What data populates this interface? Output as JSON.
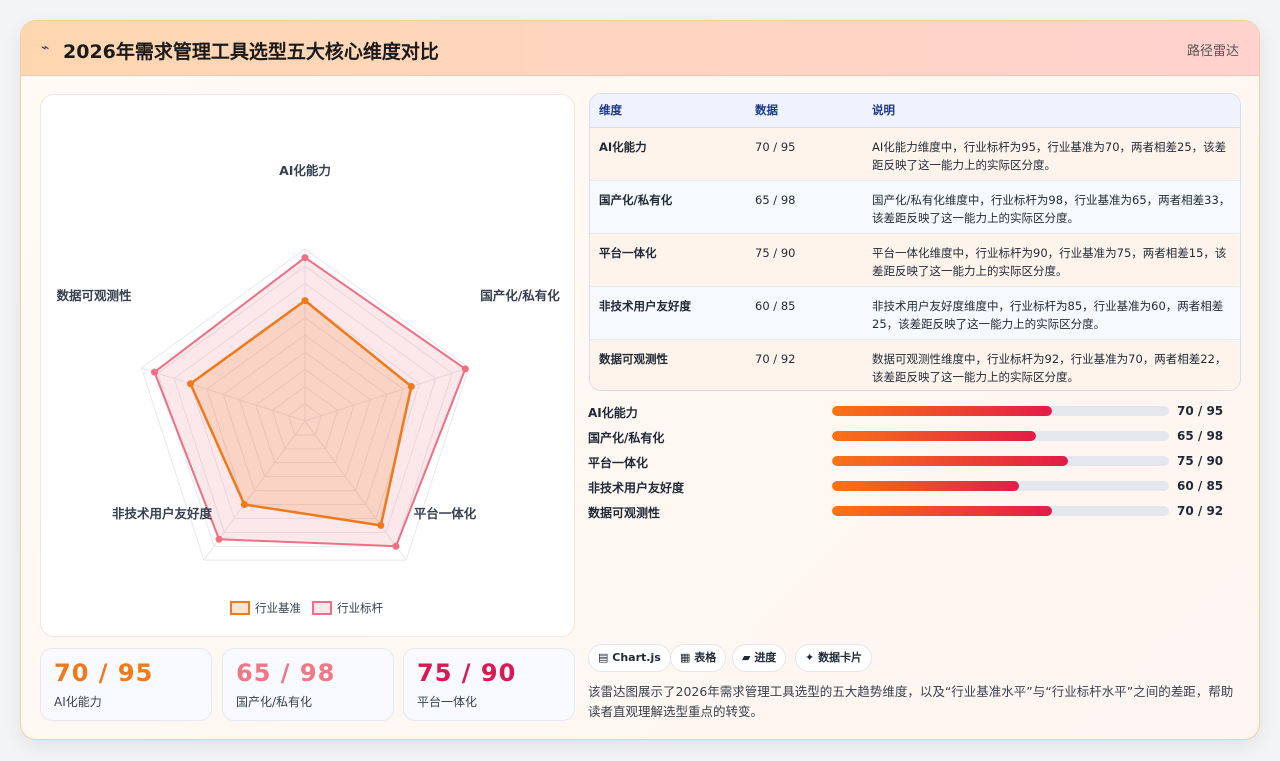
{
  "header": {
    "logo_icon": "⌁",
    "title": "2026年需求管理工具选型五大核心维度对比",
    "tag": "路径雷达"
  },
  "chart_data": {
    "type": "radar",
    "categories": [
      "AI化能力",
      "国产化/私有化",
      "平台一体化",
      "非技术用户友好度",
      "数据可观测性"
    ],
    "series": [
      {
        "name": "行业基准",
        "values": [
          70,
          65,
          75,
          60,
          70
        ],
        "color": "#f07a1a"
      },
      {
        "name": "行业标杆",
        "values": [
          95,
          98,
          90,
          85,
          92
        ],
        "color": "#ef6f84"
      }
    ],
    "range": [
      0,
      100
    ],
    "grid_rings": 10,
    "legend_position": "bottom"
  },
  "stats": [
    {
      "value": "70 / 95",
      "label": "AI化能力",
      "color": "#f07a1a"
    },
    {
      "value": "65 / 98",
      "label": "国产化/私有化",
      "color": "#f07783"
    },
    {
      "value": "75 / 90",
      "label": "平台一体化",
      "color": "#d9194f"
    }
  ],
  "table": {
    "headers": [
      "维度",
      "数据",
      "说明"
    ],
    "rows": [
      {
        "dim": "AI化能力",
        "data": "70 / 95",
        "desc": "AI化能力维度中，行业标杆为95，行业基准为70，两者相差25，该差距反映了这一能力上的实际区分度。"
      },
      {
        "dim": "国产化/私有化",
        "data": "65 / 98",
        "desc": "国产化/私有化维度中，行业标杆为98，行业基准为65，两者相差33，该差距反映了这一能力上的实际区分度。"
      },
      {
        "dim": "平台一体化",
        "data": "75 / 90",
        "desc": "平台一体化维度中，行业标杆为90，行业基准为75，两者相差15，该差距反映了这一能力上的实际区分度。"
      },
      {
        "dim": "非技术用户友好度",
        "data": "60 / 85",
        "desc": "非技术用户友好度维度中，行业标杆为85，行业基准为60，两者相差25，该差距反映了这一能力上的实际区分度。"
      },
      {
        "dim": "数据可观测性",
        "data": "70 / 92",
        "desc": "数据可观测性维度中，行业标杆为92，行业基准为70，两者相差22，该差距反映了这一能力上的实际区分度。"
      }
    ]
  },
  "progress": [
    {
      "label": "AI化能力",
      "text": "70 / 95",
      "fraction": 0.652
    },
    {
      "label": "国产化/私有化",
      "text": "65 / 98",
      "fraction": 0.605
    },
    {
      "label": "平台一体化",
      "text": "75 / 90",
      "fraction": 0.7
    },
    {
      "label": "非技术用户友好度",
      "text": "60 / 85",
      "fraction": 0.556
    },
    {
      "label": "数据可观测性",
      "text": "70 / 92",
      "fraction": 0.652
    }
  ],
  "chips": [
    {
      "icon": "▤",
      "label": "Chart.js"
    },
    {
      "icon": "▦",
      "label": "表格"
    },
    {
      "icon": "▰",
      "label": "进度"
    },
    {
      "icon": "✦",
      "label": "数据卡片"
    }
  ],
  "description": "该雷达图展示了2026年需求管理工具选型的五大趋势维度，以及“行业基准水平”与“行业标杆水平”之间的差距，帮助读者直观理解选型重点的转变。"
}
